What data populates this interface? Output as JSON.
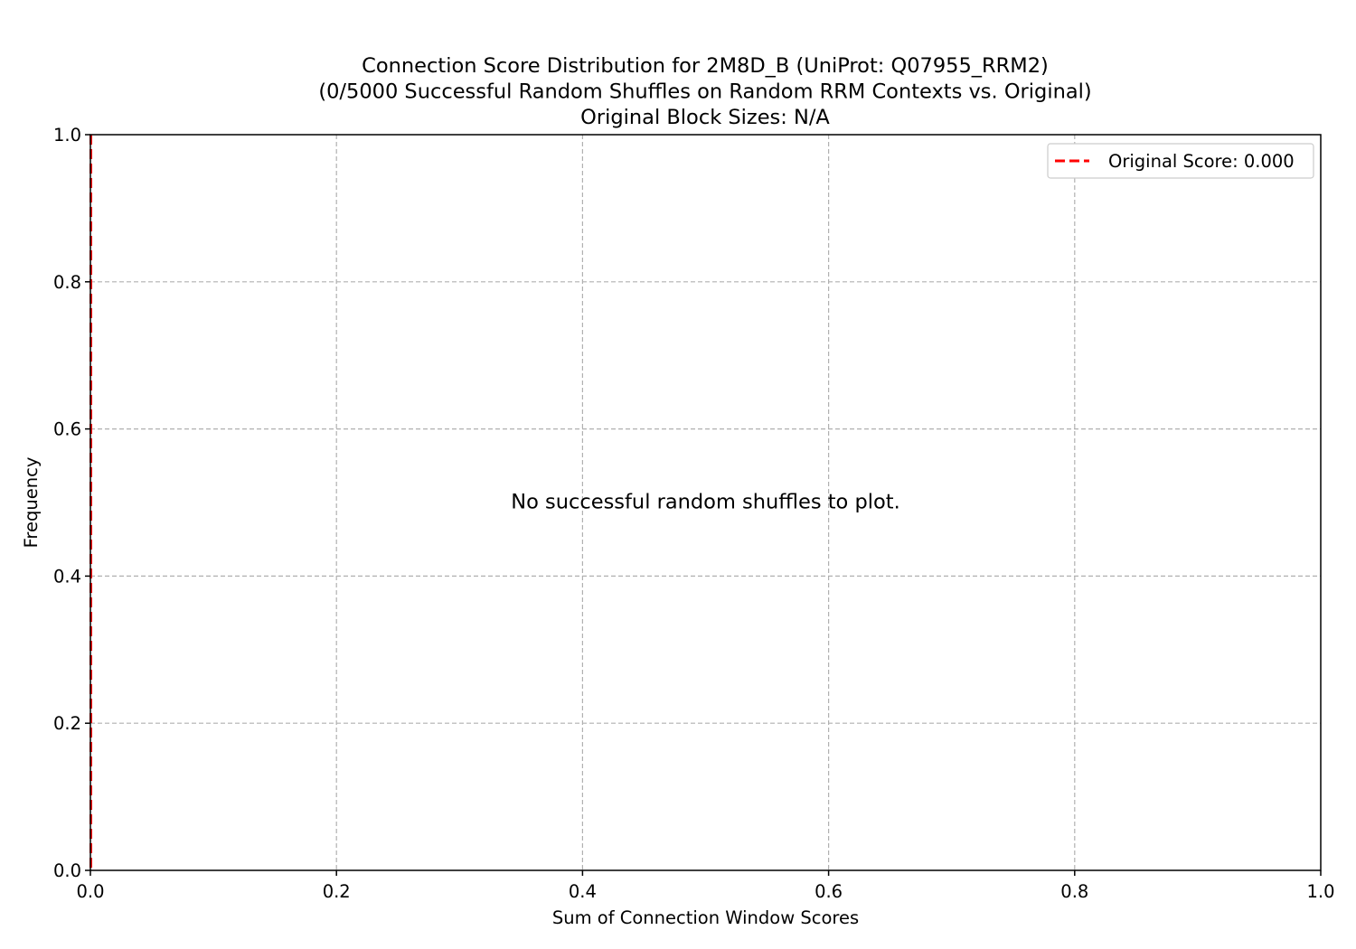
{
  "chart_data": {
    "type": "histogram",
    "title_lines": [
      "Connection Score Distribution for 2M8D_B (UniProt: Q07955_RRM2)",
      "(0/5000 Successful Random Shuffles on Random RRM Contexts vs. Original)",
      "Original Block Sizes: N/A"
    ],
    "xlabel": "Sum of Connection Window Scores",
    "ylabel": "Frequency",
    "xlim": [
      0,
      1
    ],
    "ylim": [
      0,
      1
    ],
    "xticks": [
      0.0,
      0.2,
      0.4,
      0.6,
      0.8,
      1.0
    ],
    "xtick_labels": [
      "0.0",
      "0.2",
      "0.4",
      "0.6",
      "0.8",
      "1.0"
    ],
    "yticks": [
      0.0,
      0.2,
      0.4,
      0.6,
      0.8,
      1.0
    ],
    "ytick_labels": [
      "0.0",
      "0.2",
      "0.4",
      "0.6",
      "0.8",
      "1.0"
    ],
    "grid": true,
    "series": [],
    "reference_line": {
      "name": "Original Score: 0.000",
      "x": 0.0,
      "color": "#ff0000",
      "style": "dashed"
    },
    "annotation": "No successful random shuffles to plot.",
    "legend_position": "top-right"
  }
}
